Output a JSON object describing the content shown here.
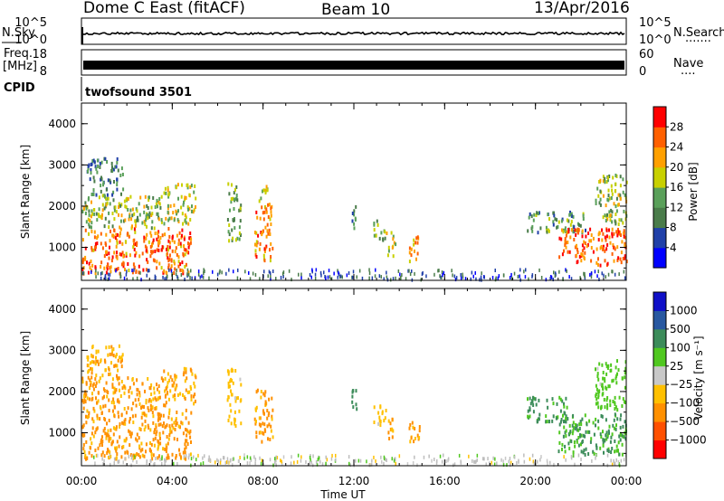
{
  "header": {
    "station": "Dome C East (fitACF)",
    "beam": "Beam 10",
    "date": "13/Apr/2016"
  },
  "strip_labels": {
    "nsky": "N.Sky",
    "nsearch": "N.Search",
    "nsearch_dots": "·······",
    "freq_line1": "Freq.",
    "freq_line2": "[MHz]",
    "nave": "Nave",
    "nave_dots": "····",
    "cpid": "CPID",
    "cpid_name": "twofsound 3501"
  },
  "strip_ticks": {
    "noise_left": [
      "10^5",
      "10^0"
    ],
    "noise_right": [
      "10^5",
      "10^0"
    ],
    "freq_left": [
      "18",
      "8"
    ],
    "freq_right": [
      "60",
      "0"
    ]
  },
  "colors": {
    "power_scale": [
      "#0000ff",
      "#2040a8",
      "#4a7c4a",
      "#5aa05a",
      "#c8d000",
      "#ffa000",
      "#ff6000",
      "#ff0000"
    ],
    "velocity_scale": [
      "#ff0000",
      "#ff5000",
      "#ff9000",
      "#ffc000",
      "#c8c8c8",
      "#50c820",
      "#3c8c5a",
      "#2858a0",
      "#1010c8"
    ],
    "ground_scatter": "#bebebe"
  },
  "chart_data": [
    {
      "type": "heatmap",
      "name": "power",
      "xlabel": "Time UT",
      "ylabel": "Slant Range [km]",
      "xlim": [
        0,
        24
      ],
      "ylim": [
        200,
        4500
      ],
      "x_ticks": [
        "00:00",
        "04:00",
        "08:00",
        "12:00",
        "16:00",
        "20:00",
        "00:00"
      ],
      "y_ticks": [
        1000,
        2000,
        3000,
        4000
      ],
      "colorbar_label": "Power [dB]",
      "colorbar_ticks": [
        "28",
        "24",
        "20",
        "16",
        "12",
        "8",
        "4"
      ],
      "colorbar_range": [
        0,
        30
      ],
      "regions": [
        {
          "t": [
            0.0,
            4.8
          ],
          "r": [
            400,
            1500
          ],
          "level": 25
        },
        {
          "t": [
            0.0,
            3.6
          ],
          "r": [
            1500,
            2300
          ],
          "level": 16
        },
        {
          "t": [
            0.2,
            1.8
          ],
          "r": [
            2300,
            3200
          ],
          "level": 10
        },
        {
          "t": [
            3.6,
            5.0
          ],
          "r": [
            1600,
            2600
          ],
          "level": 18
        },
        {
          "t": [
            6.4,
            7.0
          ],
          "r": [
            1200,
            2600
          ],
          "level": 14
        },
        {
          "t": [
            7.6,
            8.4
          ],
          "r": [
            700,
            2100
          ],
          "level": 24
        },
        {
          "t": [
            7.8,
            8.2
          ],
          "r": [
            2100,
            2600
          ],
          "level": 18
        },
        {
          "t": [
            11.8,
            12.1
          ],
          "r": [
            1500,
            2100
          ],
          "level": 12
        },
        {
          "t": [
            12.8,
            13.4
          ],
          "r": [
            1200,
            1700
          ],
          "level": 14
        },
        {
          "t": [
            13.4,
            13.8
          ],
          "r": [
            800,
            1400
          ],
          "level": 18
        },
        {
          "t": [
            14.4,
            14.9
          ],
          "r": [
            700,
            1300
          ],
          "level": 22
        },
        {
          "t": [
            19.6,
            22.2
          ],
          "r": [
            1400,
            1900
          ],
          "level": 12
        },
        {
          "t": [
            21.0,
            24.0
          ],
          "r": [
            600,
            1500
          ],
          "level": 26
        },
        {
          "t": [
            22.6,
            24.0
          ],
          "r": [
            1600,
            2800
          ],
          "level": 16
        }
      ]
    },
    {
      "type": "heatmap",
      "name": "velocity",
      "xlabel": "Time UT",
      "ylabel": "Slant Range [km]",
      "xlim": [
        0,
        24
      ],
      "ylim": [
        200,
        4500
      ],
      "x_ticks": [
        "00:00",
        "04:00",
        "08:00",
        "12:00",
        "16:00",
        "20:00",
        "00:00"
      ],
      "y_ticks": [
        1000,
        2000,
        3000,
        4000
      ],
      "colorbar_label": "Velocity [m s⁻¹]",
      "colorbar_ticks": [
        "1000",
        "500",
        "100",
        "25",
        "−25",
        "−100",
        "−500",
        "−1000"
      ],
      "regions": [
        {
          "t": [
            0.0,
            4.8
          ],
          "r": [
            400,
            1600
          ],
          "level": -150
        },
        {
          "t": [
            0.0,
            3.6
          ],
          "r": [
            1600,
            2400
          ],
          "level": -120
        },
        {
          "t": [
            0.2,
            1.8
          ],
          "r": [
            2400,
            3200
          ],
          "level": -80
        },
        {
          "t": [
            3.6,
            5.0
          ],
          "r": [
            1700,
            2600
          ],
          "level": -100
        },
        {
          "t": [
            6.4,
            7.0
          ],
          "r": [
            1200,
            2600
          ],
          "level": -60
        },
        {
          "t": [
            7.6,
            8.4
          ],
          "r": [
            800,
            2100
          ],
          "level": -150
        },
        {
          "t": [
            11.8,
            12.1
          ],
          "r": [
            1500,
            2100
          ],
          "level": 200
        },
        {
          "t": [
            12.8,
            13.4
          ],
          "r": [
            1200,
            1700
          ],
          "level": -60
        },
        {
          "t": [
            13.4,
            13.8
          ],
          "r": [
            800,
            1400
          ],
          "level": -80
        },
        {
          "t": [
            14.4,
            14.9
          ],
          "r": [
            700,
            1300
          ],
          "level": -120
        },
        {
          "t": [
            19.6,
            21.4
          ],
          "r": [
            1300,
            1900
          ],
          "level": 150
        },
        {
          "t": [
            20.8,
            24.0
          ],
          "r": [
            500,
            1500
          ],
          "level": 120
        },
        {
          "t": [
            22.6,
            24.0
          ],
          "r": [
            1600,
            2800
          ],
          "level": 60
        }
      ]
    }
  ]
}
